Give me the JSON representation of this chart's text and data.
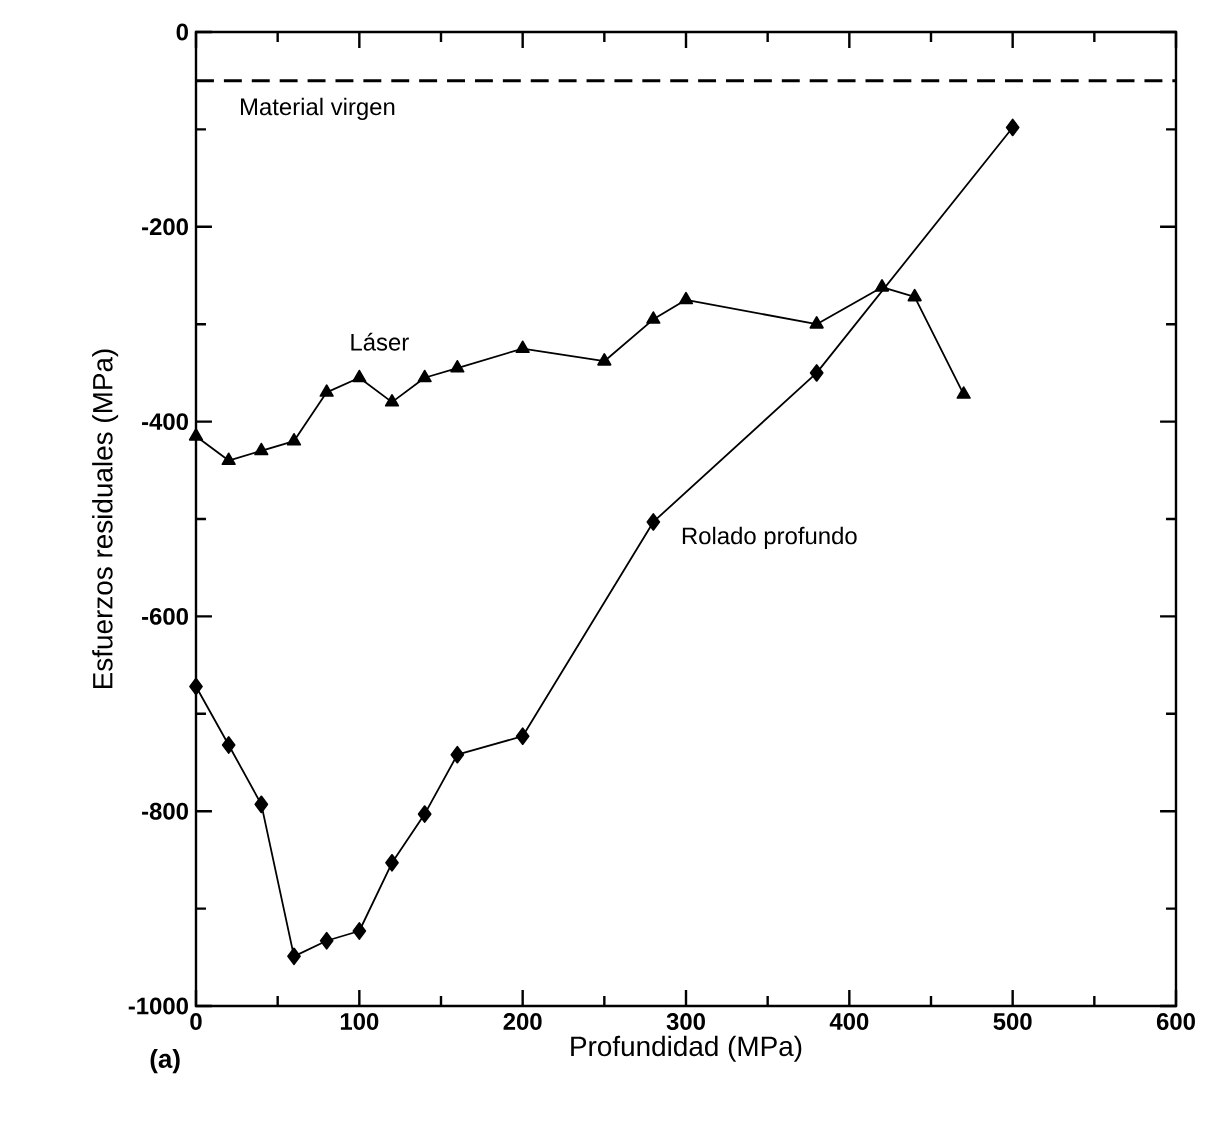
{
  "chart_data": {
    "type": "line",
    "xlabel": "Profundidad (MPa)",
    "ylabel": "Esfuerzos residuales (MPa)",
    "xlim": [
      0,
      600
    ],
    "xticks": [
      0,
      100,
      200,
      300,
      400,
      500,
      600
    ],
    "ylim": [
      -1000,
      0
    ],
    "yticks": [
      -1000,
      -800,
      -600,
      -400,
      -200,
      0
    ],
    "grid": false,
    "series": [
      {
        "name": "Láser",
        "color": "#000000",
        "marker": "triangle",
        "x": [
          0,
          20,
          40,
          60,
          80,
          100,
          120,
          140,
          160,
          200,
          250,
          280,
          300,
          380,
          420,
          440,
          470
        ],
        "values": [
          -415,
          -440,
          -430,
          -420,
          -370,
          -355,
          -380,
          -355,
          -345,
          -325,
          -338,
          -295,
          -275,
          -300,
          -262,
          -272,
          -372
        ]
      },
      {
        "name": "Rolado profundo",
        "color": "#000000",
        "marker": "diamond",
        "x": [
          0,
          20,
          40,
          60,
          80,
          100,
          120,
          140,
          160,
          200,
          280,
          380,
          500
        ],
        "values": [
          -672,
          -732,
          -793,
          -949,
          -933,
          -923,
          -853,
          -803,
          -742,
          -723,
          -503,
          -350,
          -98
        ]
      }
    ],
    "ref_lines": [
      {
        "axis": "y",
        "value": -50,
        "label": "Material virgen",
        "line_style": "dashed",
        "color": "#000000"
      }
    ],
    "annotations": [
      "(a)"
    ]
  }
}
